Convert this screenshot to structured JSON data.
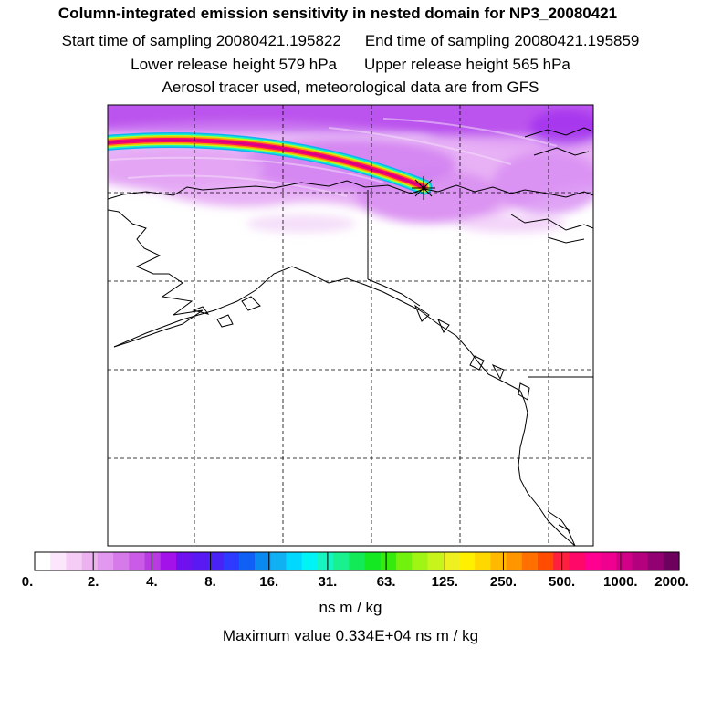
{
  "title": "Column-integrated emission sensitivity in nested domain for NP3_20080421",
  "start_label": "Start time of sampling 20080421.195822",
  "end_label": "End time of sampling 20080421.195859",
  "lower_label": "Lower release height  579 hPa",
  "upper_label": "Upper release height  565 hPa",
  "info_line": "Aerosol tracer used, meteorological data are from GFS",
  "legend": {
    "unit": "ns m / kg",
    "ticks": [
      "0.",
      "2.",
      "4.",
      "8.",
      "16.",
      "31.",
      "63.",
      "125.",
      "250.",
      "500.",
      "1000.",
      "2000."
    ],
    "colors": [
      "#ffffff",
      "#fbe6fb",
      "#f4ccf5",
      "#ecb2f0",
      "#e298ee",
      "#d67ae9",
      "#c95be6",
      "#b83be2",
      "#a312e8",
      "#6f10ef",
      "#5a18f3",
      "#4b22f6",
      "#2e3aff",
      "#1060f5",
      "#0a8af0",
      "#11b0f3",
      "#00d8ff",
      "#00f4f6",
      "#16f4c0",
      "#19f090",
      "#12ea58",
      "#14e823",
      "#35eb0d",
      "#72f00e",
      "#a0f515",
      "#c8f41b",
      "#eef022",
      "#fff000",
      "#ffd800",
      "#ffba00",
      "#ff9600",
      "#ff7000",
      "#ff4c00",
      "#ff2040",
      "#ff0868",
      "#ff0090",
      "#f0008e",
      "#d20088",
      "#b4007e",
      "#930072",
      "#6e005e"
    ]
  },
  "max_value_label": "Maximum value  0.334E+04 ns m / kg",
  "colors": {
    "sensitivity_light": "#f3c6f6",
    "sensitivity_mid": "#d88cf0",
    "sensitivity_strong": "#b12ff0"
  }
}
